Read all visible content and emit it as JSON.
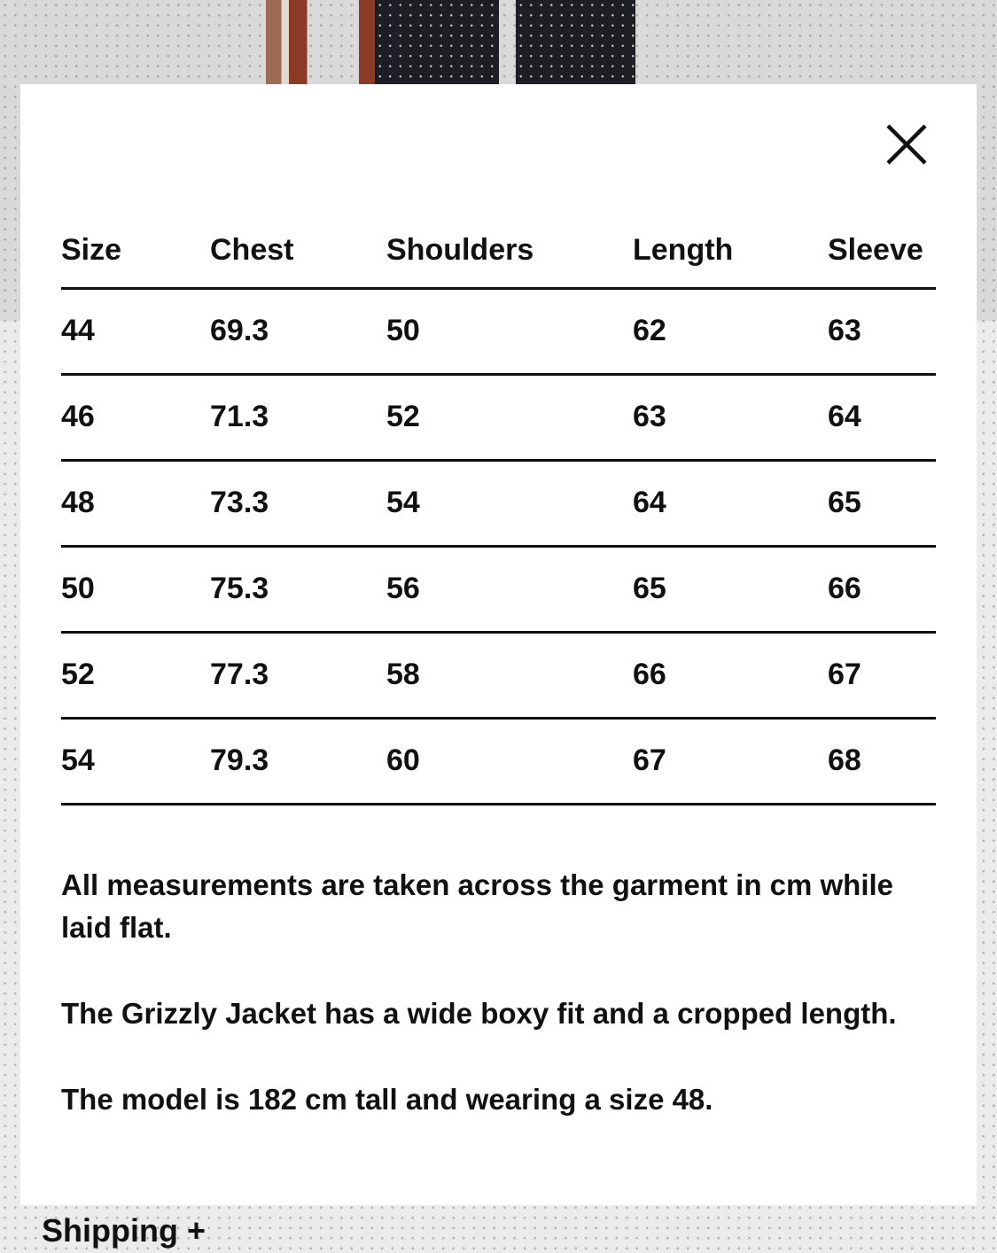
{
  "modal": {
    "close_icon": "close-x-icon",
    "table": {
      "headers": [
        "Size",
        "Chest",
        "Shoulders",
        "Length",
        "Sleeve"
      ],
      "rows": [
        [
          "44",
          "69.3",
          "50",
          "62",
          "63"
        ],
        [
          "46",
          "71.3",
          "52",
          "63",
          "64"
        ],
        [
          "48",
          "73.3",
          "54",
          "64",
          "65"
        ],
        [
          "50",
          "75.3",
          "56",
          "65",
          "66"
        ],
        [
          "52",
          "77.3",
          "58",
          "66",
          "67"
        ],
        [
          "54",
          "79.3",
          "60",
          "67",
          "68"
        ]
      ]
    },
    "notes": [
      "All measurements are taken across the garment in cm while laid flat.",
      "The Grizzly Jacket has a wide boxy fit and a cropped length.",
      "The model is 182 cm tall and wearing a size 48."
    ]
  },
  "shipping": {
    "label": "Shipping +"
  }
}
